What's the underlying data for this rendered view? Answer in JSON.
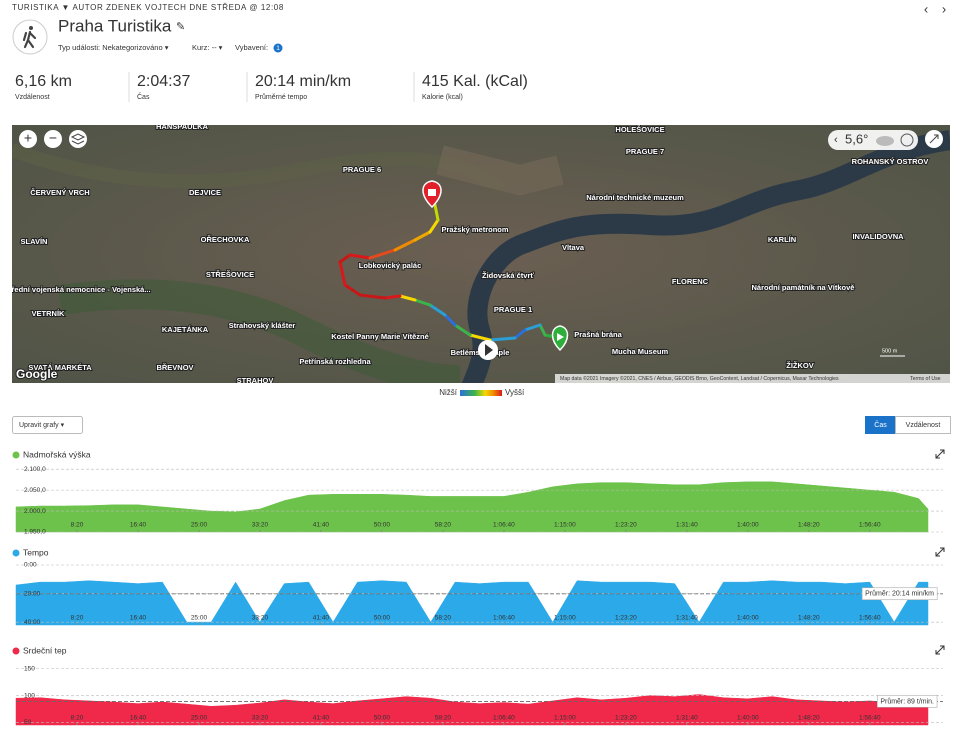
{
  "header": {
    "breadcrumb": "TURISTIKA ▼ AUTOR ZDENEK VOJTECH DNE STŘEDA @ 12:08",
    "title": "Praha Turistika",
    "event_type": "Typ události: Nekategorizováno ▾",
    "course": "Kurz: -- ▾",
    "gear": "Vybavení:",
    "gear_count": "1"
  },
  "stats": [
    {
      "value": "6,16 km",
      "label": "Vzdálenost"
    },
    {
      "value": "2:04:37",
      "label": "Čas"
    },
    {
      "value": "20:14 min/km",
      "label": "Průměrné tempo"
    },
    {
      "value": "415 Kal. (kCal)",
      "label": "Kalorie (kcal)"
    }
  ],
  "map": {
    "labels": [
      "HOLEŠOVICE",
      "PRAGUE 7",
      "PRAGUE 6",
      "DEJVICE",
      "ČERVENÝ VRCH",
      "OŘECHOVKA",
      "STŘEŠOVICE",
      "VETRNÍK",
      "KAJETÁNKA",
      "BŘEVNOV",
      "STRAHOV",
      "SLAVÍN",
      "Národní technické muzeum",
      "Pražský metronom",
      "Lobkovický palác",
      "Židovská čtvrť",
      "PRAGUE 1",
      "Strahovský klášter",
      "Petřínská rozhledna",
      "Prašná brána",
      "Mucha Museum",
      "FLORENC",
      "KARLÍN",
      "INVALIDOVNA",
      "ROHANSKÝ OSTROV",
      "ŽIŽKOV",
      "Národní památník na Vítkově",
      "Ústřední vojenská nemocnice - Vojenská...",
      "HANSPAULKA",
      "Vltava",
      "SVATÁ MARKÉTA",
      "Betlémská kaple",
      "Kostel Panny Marie Vítězné"
    ],
    "temperature": "5,6°",
    "scale": "500 m",
    "attribution": "Map data ©2021 Imagery ©2021, CNES / Airbus, GEODIS Brno, GeoContent, Landsat / Copernicus, Maxar Technologies",
    "terms": "Terms of Use",
    "google": "Google",
    "legend_low": "Nižší",
    "legend_high": "Vyšší"
  },
  "controls": {
    "edit_charts": "Upravit grafy ▾",
    "time": "Čas",
    "distance": "Vzdálenost"
  },
  "chart_data": [
    {
      "type": "area",
      "title": "Nadmořská výška",
      "color": "#6cc24a",
      "x": [
        0,
        200,
        400,
        600,
        800,
        1000,
        1200,
        1400,
        1600,
        1800,
        2000,
        2200,
        2400,
        2600,
        2800,
        3000,
        3200,
        3400,
        3600,
        3800,
        4000,
        4200,
        4400,
        4600,
        4800,
        5000,
        5200,
        5400,
        5600,
        5800,
        6000,
        6200,
        6400,
        6600,
        6800,
        7000,
        7200,
        7400,
        7477
      ],
      "values": [
        2010,
        2012,
        2012,
        2013,
        2015,
        2015,
        2010,
        2005,
        2000,
        1998,
        2005,
        2025,
        2038,
        2040,
        2040,
        2040,
        2038,
        2035,
        2035,
        2035,
        2035,
        2045,
        2058,
        2065,
        2068,
        2068,
        2065,
        2063,
        2063,
        2068,
        2070,
        2070,
        2065,
        2060,
        2055,
        2050,
        2045,
        2030,
        2005
      ],
      "xlim": [
        0,
        7600
      ],
      "ylim": [
        1950,
        2110
      ],
      "yticks": [
        {
          "value": 1950,
          "label": "1.950,0"
        },
        {
          "value": 2000,
          "label": "2.000,0"
        },
        {
          "value": 2050,
          "label": "2.050,0"
        },
        {
          "value": 2100,
          "label": "2.100,0"
        }
      ],
      "xticks": [
        {
          "value": 500,
          "label": "8:20"
        },
        {
          "value": 1000,
          "label": "16:40"
        },
        {
          "value": 1500,
          "label": "25:00"
        },
        {
          "value": 2000,
          "label": "33:20"
        },
        {
          "value": 2500,
          "label": "41:40"
        },
        {
          "value": 3000,
          "label": "50:00"
        },
        {
          "value": 3500,
          "label": "58:20"
        },
        {
          "value": 4000,
          "label": "1:06:40"
        },
        {
          "value": 4500,
          "label": "1:15:00"
        },
        {
          "value": 5000,
          "label": "1:23:20"
        },
        {
          "value": 5500,
          "label": "1:31:40"
        },
        {
          "value": 6000,
          "label": "1:40:00"
        },
        {
          "value": 6500,
          "label": "1:48:20"
        },
        {
          "value": 7000,
          "label": "1:56:40"
        }
      ],
      "grid": true
    },
    {
      "type": "area",
      "title": "Tempo",
      "color": "#2ca9e8",
      "inverted": true,
      "x": [
        0,
        200,
        400,
        600,
        800,
        1000,
        1200,
        1400,
        1600,
        1800,
        2000,
        2200,
        2400,
        2600,
        2800,
        3000,
        3200,
        3400,
        3600,
        3800,
        4000,
        4200,
        4400,
        4600,
        4800,
        5000,
        5200,
        5400,
        5600,
        5800,
        6000,
        6200,
        6400,
        6600,
        6800,
        7000,
        7200,
        7400,
        7477
      ],
      "values": [
        14,
        12,
        12,
        11,
        12,
        13,
        12,
        40,
        40,
        12,
        40,
        13,
        12,
        40,
        12,
        11,
        12,
        40,
        12,
        13,
        12,
        12,
        40,
        11,
        12,
        12,
        12,
        13,
        40,
        12,
        12,
        11,
        12,
        12,
        13,
        12,
        40,
        12,
        12
      ],
      "xlim": [
        0,
        7600
      ],
      "ylim": [
        0,
        42
      ],
      "yticks": [
        {
          "value": 0,
          "label": "0:00"
        },
        {
          "value": 20,
          "label": "20:00"
        },
        {
          "value": 40,
          "label": "40:00"
        }
      ],
      "xticks": [
        {
          "value": 500,
          "label": "8:20"
        },
        {
          "value": 1000,
          "label": "16:40"
        },
        {
          "value": 1500,
          "label": "25:00"
        },
        {
          "value": 2000,
          "label": "33:20"
        },
        {
          "value": 2500,
          "label": "41:40"
        },
        {
          "value": 3000,
          "label": "50:00"
        },
        {
          "value": 3500,
          "label": "58:20"
        },
        {
          "value": 4000,
          "label": "1:06:40"
        },
        {
          "value": 4500,
          "label": "1:15:00"
        },
        {
          "value": 5000,
          "label": "1:23:20"
        },
        {
          "value": 5500,
          "label": "1:31:40"
        },
        {
          "value": 6000,
          "label": "1:40:00"
        },
        {
          "value": 6500,
          "label": "1:48:20"
        },
        {
          "value": 7000,
          "label": "1:56:40"
        }
      ],
      "average": 20.233,
      "average_label": "Průměr: 20:14 min/km",
      "grid": true
    },
    {
      "type": "area",
      "title": "Srdeční tep",
      "color": "#f0284a",
      "x": [
        0,
        200,
        400,
        600,
        800,
        1000,
        1200,
        1400,
        1600,
        1800,
        2000,
        2200,
        2400,
        2600,
        2800,
        3000,
        3200,
        3400,
        3600,
        3800,
        4000,
        4200,
        4400,
        4600,
        4800,
        5000,
        5200,
        5400,
        5600,
        5800,
        6000,
        6200,
        6400,
        6600,
        6800,
        7000,
        7200,
        7400,
        7477
      ],
      "values": [
        95,
        96,
        92,
        90,
        88,
        85,
        88,
        84,
        80,
        82,
        86,
        92,
        88,
        85,
        90,
        94,
        98,
        95,
        88,
        85,
        87,
        84,
        90,
        96,
        92,
        95,
        100,
        98,
        102,
        96,
        94,
        98,
        92,
        90,
        88,
        90,
        86,
        92,
        94
      ],
      "xlim": [
        0,
        7600
      ],
      "ylim": [
        45,
        157
      ],
      "yticks": [
        50,
        100,
        150
      ],
      "xticks": [
        {
          "value": 500,
          "label": "8:20"
        },
        {
          "value": 1000,
          "label": "16:40"
        },
        {
          "value": 1500,
          "label": "25:00"
        },
        {
          "value": 2000,
          "label": "33:20"
        },
        {
          "value": 2500,
          "label": "41:40"
        },
        {
          "value": 3000,
          "label": "50:00"
        },
        {
          "value": 3500,
          "label": "58:20"
        },
        {
          "value": 4000,
          "label": "1:06:40"
        },
        {
          "value": 4500,
          "label": "1:15:00"
        },
        {
          "value": 5000,
          "label": "1:23:20"
        },
        {
          "value": 5500,
          "label": "1:31:40"
        },
        {
          "value": 6000,
          "label": "1:40:00"
        },
        {
          "value": 6500,
          "label": "1:48:20"
        },
        {
          "value": 7000,
          "label": "1:56:40"
        }
      ],
      "average": 89,
      "average_label": "Průměr: 89 t/min.",
      "grid": true
    }
  ]
}
